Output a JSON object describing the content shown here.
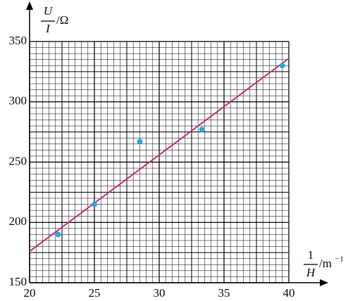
{
  "chart_data": {
    "type": "scatter",
    "x_label": {
      "numerator": "1",
      "denominator": "H",
      "unit": "/m",
      "unit_exponent": "−1"
    },
    "y_label": {
      "numerator": "U",
      "denominator": "I",
      "unit": "/Ω"
    },
    "points": {
      "x": [
        22.2,
        25,
        28.5,
        33.3,
        39.5
      ],
      "y": [
        190,
        215,
        267,
        277,
        330
      ],
      "color": "#2aa7df"
    },
    "fit_line": {
      "x": [
        20,
        40
      ],
      "y": [
        176,
        336
      ],
      "color": "#c2307c"
    },
    "xlim": [
      20,
      40
    ],
    "ylim": [
      150,
      350
    ],
    "xticks": [
      20,
      25,
      30,
      35,
      40
    ],
    "yticks": [
      150,
      200,
      250,
      300,
      350
    ],
    "grid": true
  }
}
